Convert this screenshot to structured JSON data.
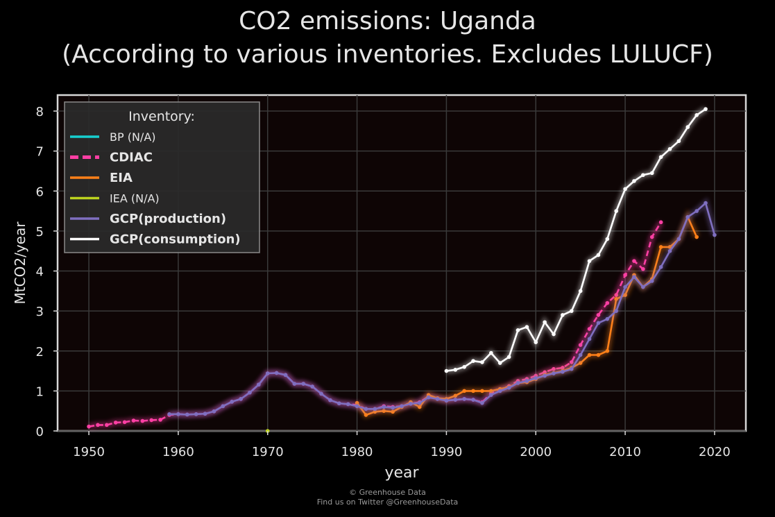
{
  "title_line1": "CO2 emissions: Uganda",
  "title_line2": "(According to various inventories. Excludes LULUCF)",
  "footer": {
    "line1": "© Greenhouse Data",
    "line2": "Find us on Twitter @GreenhouseData"
  },
  "colors": {
    "background": "#000000",
    "plot_background": "#0e0505",
    "grid": "#3a3a3a",
    "BP": "#17cfcf",
    "CDIAC": "#ff3fa4",
    "EIA": "#ff8018",
    "IEA": "#bcd31f",
    "GCP_production": "#7f6fc0",
    "GCP_consumption": "#ffffff"
  },
  "chart_data": {
    "type": "line",
    "xlabel": "year",
    "ylabel": "MtCO2/year",
    "xlim": [
      1946.5,
      2023.5
    ],
    "ylim": [
      0,
      8.4
    ],
    "xticks": [
      1950,
      1960,
      1970,
      1980,
      1990,
      2000,
      2010,
      2020
    ],
    "yticks": [
      0,
      1,
      2,
      3,
      4,
      5,
      6,
      7,
      8
    ],
    "grid": true,
    "legend": {
      "title": "Inventory:",
      "placement": "top-left",
      "entries": [
        "BP (N/A)",
        "CDIAC",
        "EIA",
        "IEA (N/A)",
        "GCP(production)",
        "GCP(consumption)"
      ]
    },
    "series": [
      {
        "name": "CDIAC",
        "color_key": "CDIAC",
        "dashed": true,
        "x": [
          1950,
          1951,
          1952,
          1953,
          1954,
          1955,
          1956,
          1957,
          1958,
          1959,
          1960,
          1961,
          1962,
          1963,
          1964,
          1965,
          1966,
          1967,
          1968,
          1969,
          1970,
          1971,
          1972,
          1973,
          1974,
          1975,
          1976,
          1977,
          1978,
          1979,
          1980,
          1981,
          1982,
          1983,
          1984,
          1985,
          1986,
          1987,
          1988,
          1989,
          1990,
          1991,
          1992,
          1993,
          1994,
          1995,
          1996,
          1997,
          1998,
          1999,
          2000,
          2001,
          2002,
          2003,
          2004,
          2005,
          2006,
          2007,
          2008,
          2009,
          2010,
          2011,
          2012,
          2013,
          2014
        ],
        "y": [
          0.11,
          0.15,
          0.15,
          0.21,
          0.22,
          0.26,
          0.25,
          0.27,
          0.28,
          0.4,
          0.42,
          0.41,
          0.42,
          0.43,
          0.49,
          0.62,
          0.73,
          0.8,
          0.96,
          1.16,
          1.44,
          1.45,
          1.4,
          1.18,
          1.18,
          1.11,
          0.93,
          0.77,
          0.69,
          0.67,
          0.65,
          0.55,
          0.55,
          0.62,
          0.6,
          0.62,
          0.68,
          0.72,
          0.86,
          0.82,
          0.76,
          0.78,
          0.8,
          0.78,
          0.72,
          0.94,
          1.04,
          1.12,
          1.25,
          1.3,
          1.38,
          1.47,
          1.55,
          1.58,
          1.72,
          2.15,
          2.55,
          2.9,
          3.2,
          3.4,
          3.9,
          4.25,
          4.05,
          4.85,
          5.22
        ]
      },
      {
        "name": "EIA",
        "color_key": "EIA",
        "dashed": false,
        "x": [
          1980,
          1981,
          1982,
          1983,
          1984,
          1985,
          1986,
          1987,
          1988,
          1989,
          1990,
          1991,
          1992,
          1993,
          1994,
          1995,
          1996,
          1997,
          1998,
          1999,
          2000,
          2001,
          2002,
          2003,
          2004,
          2005,
          2006,
          2007,
          2008,
          2009,
          2010,
          2011,
          2012,
          2013,
          2014,
          2015,
          2016,
          2017,
          2018
        ],
        "y": [
          0.7,
          0.4,
          0.48,
          0.5,
          0.48,
          0.6,
          0.72,
          0.6,
          0.9,
          0.82,
          0.8,
          0.88,
          1.0,
          1.0,
          1.0,
          1.0,
          1.05,
          1.1,
          1.2,
          1.22,
          1.3,
          1.4,
          1.45,
          1.5,
          1.58,
          1.7,
          1.9,
          1.9,
          2.0,
          3.3,
          3.4,
          3.9,
          3.6,
          3.8,
          4.6,
          4.6,
          4.8,
          5.35,
          4.85
        ]
      },
      {
        "name": "IEA (N/A)",
        "color_key": "IEA",
        "dashed": false,
        "x": [
          1970
        ],
        "y": [
          0.0
        ]
      },
      {
        "name": "GCP(production)",
        "color_key": "GCP_production",
        "dashed": false,
        "x": [
          1959,
          1960,
          1961,
          1962,
          1963,
          1964,
          1965,
          1966,
          1967,
          1968,
          1969,
          1970,
          1971,
          1972,
          1973,
          1974,
          1975,
          1976,
          1977,
          1978,
          1979,
          1980,
          1981,
          1982,
          1983,
          1984,
          1985,
          1986,
          1987,
          1988,
          1989,
          1990,
          1991,
          1992,
          1993,
          1994,
          1995,
          1996,
          1997,
          1998,
          1999,
          2000,
          2001,
          2002,
          2003,
          2004,
          2005,
          2006,
          2007,
          2008,
          2009,
          2010,
          2011,
          2012,
          2013,
          2014,
          2015,
          2016,
          2017,
          2018,
          2019,
          2020
        ],
        "y": [
          0.42,
          0.42,
          0.41,
          0.42,
          0.43,
          0.49,
          0.62,
          0.73,
          0.8,
          0.96,
          1.16,
          1.44,
          1.45,
          1.4,
          1.18,
          1.18,
          1.11,
          0.93,
          0.77,
          0.69,
          0.67,
          0.62,
          0.55,
          0.55,
          0.6,
          0.58,
          0.62,
          0.68,
          0.7,
          0.84,
          0.8,
          0.76,
          0.78,
          0.8,
          0.78,
          0.7,
          0.9,
          1.0,
          1.08,
          1.2,
          1.25,
          1.32,
          1.38,
          1.44,
          1.48,
          1.55,
          1.9,
          2.3,
          2.7,
          2.8,
          3.0,
          3.6,
          3.85,
          3.6,
          3.75,
          4.1,
          4.5,
          4.8,
          5.35,
          5.5,
          5.7,
          4.9
        ]
      },
      {
        "name": "GCP(consumption)",
        "color_key": "GCP_consumption",
        "dashed": false,
        "x": [
          1990,
          1991,
          1992,
          1993,
          1994,
          1995,
          1996,
          1997,
          1998,
          1999,
          2000,
          2001,
          2002,
          2003,
          2004,
          2005,
          2006,
          2007,
          2008,
          2009,
          2010,
          2011,
          2012,
          2013,
          2014,
          2015,
          2016,
          2017,
          2018,
          2019
        ],
        "y": [
          1.5,
          1.53,
          1.6,
          1.75,
          1.72,
          1.95,
          1.7,
          1.85,
          2.52,
          2.6,
          2.22,
          2.72,
          2.42,
          2.9,
          3.0,
          3.5,
          4.25,
          4.4,
          4.8,
          5.5,
          6.05,
          6.25,
          6.4,
          6.45,
          6.85,
          7.05,
          7.25,
          7.6,
          7.9,
          8.05
        ]
      }
    ]
  }
}
